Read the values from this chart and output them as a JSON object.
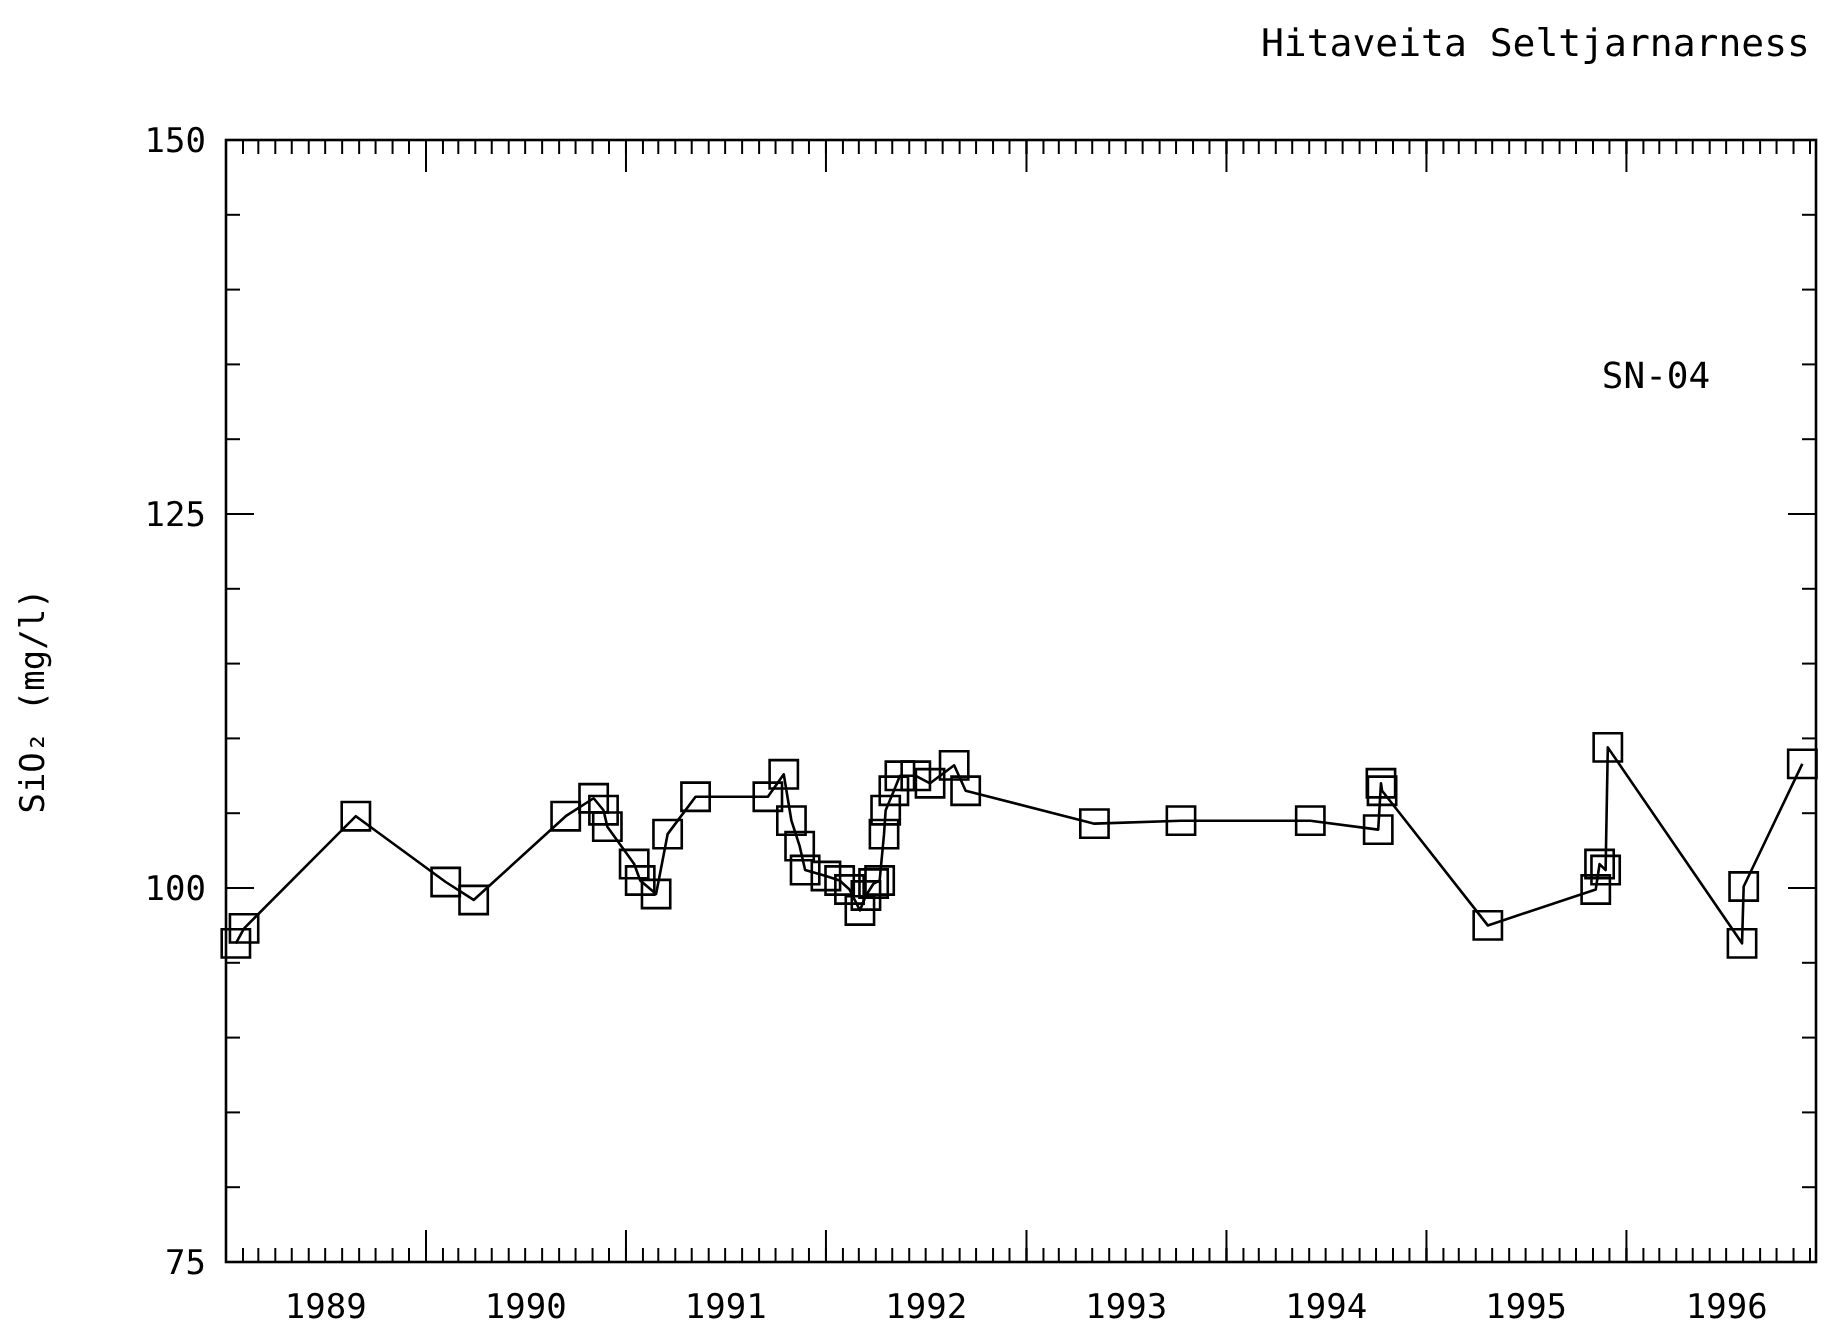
{
  "chart_data": {
    "type": "line",
    "title": "Hitaveita Seltjarnarness",
    "ylabel": "SiO₂ (mg/l)",
    "annotations": [
      "SN-04"
    ],
    "x": [
      "1989-01-19",
      "1989-02-03",
      "1989-08-26",
      "1990-02-06",
      "1990-03-29",
      "1990-09-13",
      "1990-11-03",
      "1990-11-21",
      "1990-11-28",
      "1991-01-16",
      "1991-01-27",
      "1991-02-25",
      "1991-03-18",
      "1991-05-08",
      "1991-09-17",
      "1991-10-16",
      "1991-10-30",
      "1991-11-14",
      "1991-11-24",
      "1992-01-01",
      "1992-01-26",
      "1992-02-13",
      "1992-03-03",
      "1992-03-14",
      "1992-03-28",
      "1992-04-08",
      "1992-04-16",
      "1992-04-19",
      "1992-05-04",
      "1992-05-15",
      "1992-06-13",
      "1992-07-09",
      "1992-08-22",
      "1992-09-12",
      "1993-05-05",
      "1993-10-10",
      "1994-06-03",
      "1994-10-05",
      "1994-10-10",
      "1994-10-12",
      "1995-04-23",
      "1995-11-06",
      "1995-11-13",
      "1995-11-24",
      "1995-11-28",
      "1996-07-30",
      "1996-08-02",
      "1996-11-17"
    ],
    "series": [
      {
        "color": "#000000",
        "values": [
          96.3,
          97.3,
          104.8,
          100.4,
          99.2,
          104.8,
          106.0,
          105.2,
          104.1,
          101.6,
          100.5,
          99.6,
          103.6,
          106.1,
          106.1,
          107.6,
          104.5,
          102.8,
          101.2,
          100.8,
          100.5,
          99.9,
          98.5,
          99.5,
          100.3,
          100.5,
          103.6,
          105.2,
          106.5,
          107.5,
          107.5,
          107.0,
          108.2,
          106.5,
          104.3,
          104.5,
          104.5,
          103.9,
          107.0,
          106.5,
          97.5,
          99.9,
          101.6,
          101.2,
          109.4,
          96.3,
          100.1,
          108.3
        ]
      }
    ],
    "xlim": [
      "1989-01-01",
      "1996-12-12"
    ],
    "xticks": [
      {
        "value": "1989-01-01",
        "label": null
      },
      {
        "value": "1989-07-02",
        "label": "1989"
      },
      {
        "value": "1990-01-01",
        "label": null
      },
      {
        "value": "1990-07-02",
        "label": "1990"
      },
      {
        "value": "1991-01-01",
        "label": null
      },
      {
        "value": "1991-07-02",
        "label": "1991"
      },
      {
        "value": "1992-01-01",
        "label": null
      },
      {
        "value": "1992-07-02",
        "label": "1992"
      },
      {
        "value": "1993-01-01",
        "label": null
      },
      {
        "value": "1993-07-02",
        "label": "1993"
      },
      {
        "value": "1994-01-01",
        "label": null
      },
      {
        "value": "1994-07-02",
        "label": "1994"
      },
      {
        "value": "1995-01-01",
        "label": null
      },
      {
        "value": "1995-07-02",
        "label": "1995"
      },
      {
        "value": "1996-01-01",
        "label": null
      },
      {
        "value": "1996-07-02",
        "label": "1996"
      }
    ],
    "ylim": [
      75,
      150
    ],
    "yticks": [
      75,
      100,
      125,
      150
    ],
    "marker": "square",
    "line_style": "solid",
    "grid": false
  }
}
